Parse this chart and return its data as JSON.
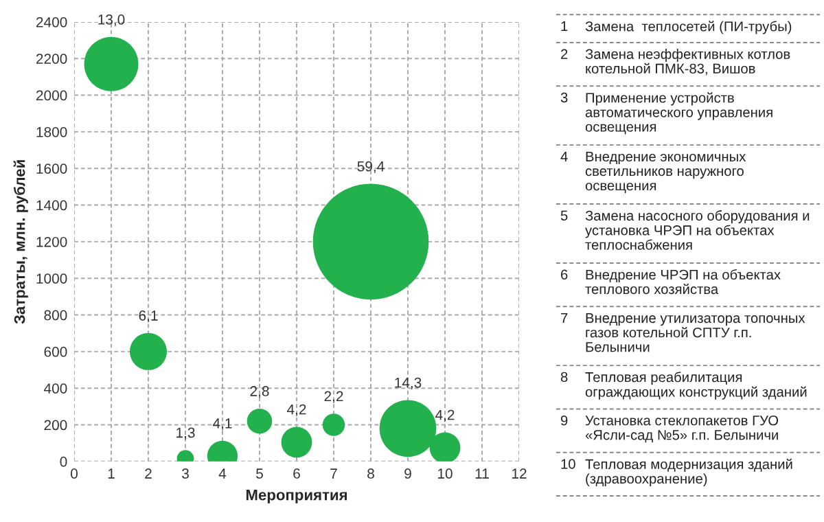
{
  "chart_data": {
    "type": "bubble",
    "xlabel": "Мероприятия",
    "ylabel": "Затраты, млн. рублей",
    "x": [
      1,
      2,
      3,
      4,
      5,
      6,
      7,
      8,
      9,
      10
    ],
    "values": [
      2170,
      600,
      15,
      30,
      220,
      105,
      200,
      1200,
      180,
      75
    ],
    "sizes": [
      13.0,
      6.1,
      1.3,
      4.1,
      2.8,
      4.2,
      2.2,
      59.4,
      14.3,
      4.2
    ],
    "value_labels": [
      "13,0",
      "6,1",
      "1,3",
      "4,1",
      "2,8",
      "4,2",
      "2,2",
      "59,4",
      "14,3",
      "4,2"
    ],
    "color": "#22b14c",
    "xlim": [
      0,
      12
    ],
    "xticks": [
      0,
      1,
      2,
      3,
      4,
      5,
      6,
      7,
      8,
      9,
      10,
      11,
      12
    ],
    "ylim": [
      0,
      2400
    ],
    "yticks": [
      0,
      200,
      400,
      600,
      800,
      1000,
      1200,
      1400,
      1600,
      1800,
      2000,
      2200,
      2400
    ],
    "grid": true,
    "annotations": [
      "1 Замена  теплосетей (ПИ-трубы)",
      "2 Замена неэффективных котлов\nкотельной ПМК-83, Вишов",
      "3 Применение устройств\nавтоматического управления\nосвещения",
      "4 Внедрение экономичных\nсветильников наружного\nосвещения",
      "5 Замена насосного оборудования и\nустановка ЧРЭП на объектах\nтеплоснабжения",
      "6 Внедрение ЧРЭП на объектах\nтеплового хозяйства",
      "7 Внедрение утилизатора топочных\nгазов котельной СПТУ г.п.\nБелыничи",
      "8 Тепловая реабилитация\nограждающих конструкций зданий",
      "9 Установка стеклопакетов ГУО\n«Ясли-сад №5» г.п. Белыничи",
      "10 Тепловая модернизация зданий\n(здравоохранение)"
    ]
  }
}
